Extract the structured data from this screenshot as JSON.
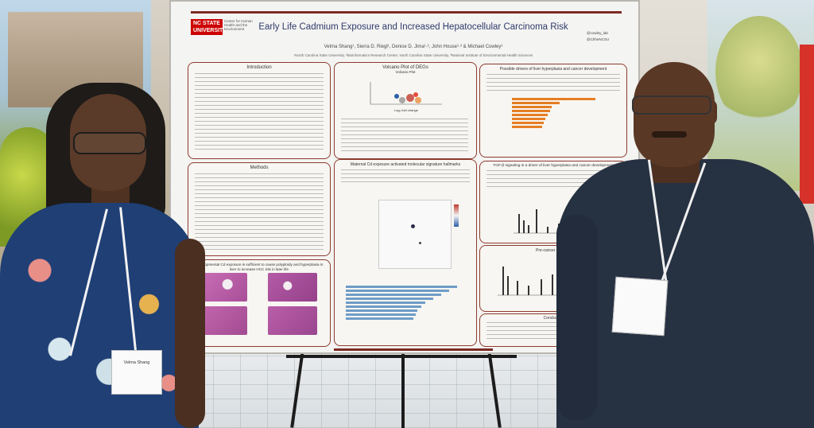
{
  "poster": {
    "logo_line1": "NC STATE",
    "logo_line2": "UNIVERSITY",
    "logo_sub": "Center for Human Health and the Environment",
    "title": "Early Life Cadmium Exposure and Increased Hepatocellular Carcinoma Risk",
    "authors": "Velma Shang¹, Sierra D. Riegl¹, Denise D. Jima¹·², John House¹·³ & Michael Cowley¹",
    "affiliation": "¹North Carolina State University, ²Bioinformatics Research Center, North Carolina State University, ³National Institute of Environmental Health Sciences",
    "handle_1": "@cowley_lab",
    "handle_2": "@ChheNCSU",
    "sections": {
      "introduction": "Introduction",
      "volcano": "Volcano Plot of DEGs",
      "volcano_sub": "Volcano Plot",
      "volcano_xlabel": "Log₂ fold change",
      "drivers": "Possible drivers of liver hyperplasia and cancer development",
      "methods": "Methods",
      "hallmarks": "Maternal Cd exposure activated molecular signature hallmarks",
      "tgf": "TGF-β signaling is a driver of liver hyperplasia and cancer development",
      "developmental": "Developmental Cd exposure is sufficient to cause polyploidy and hyperplasia in liver to increase HCC risk in later life",
      "precancer": "Pre-cancer analysis",
      "conclusion": "Conclusion"
    }
  },
  "badges": {
    "woman_name": "Velma Shang",
    "man_name": ""
  }
}
